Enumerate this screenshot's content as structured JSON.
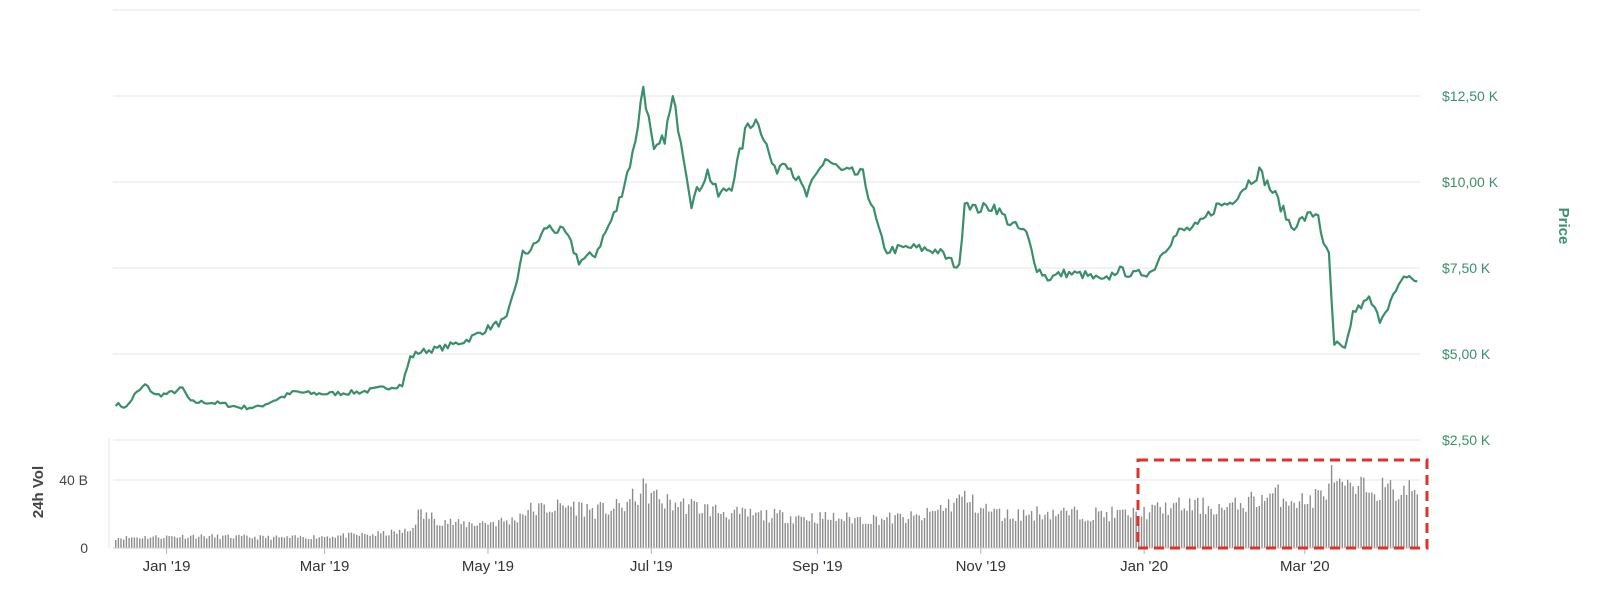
{
  "colors": {
    "price_line": "#3a8f6b",
    "price_axis_text": "#3a8f6b",
    "volume_bar": "#8c8c8c",
    "volume_axis_text": "#444444",
    "grid": "#e6e6e6",
    "axis_text": "#333333",
    "highlight_box": "#e0322a"
  },
  "chart_data": [
    {
      "type": "line",
      "ylabel": "Price",
      "ylim": [
        2.5,
        15
      ],
      "y_ticks": [
        2.5,
        5,
        7.5,
        10,
        12.5
      ],
      "y_tick_labels": [
        "$2,50 K",
        "$5,00 K",
        "$7,50 K",
        "$10,00 K",
        "$12,50 K"
      ],
      "y_axis_side": "right",
      "xlim": [
        "2018-12-12",
        "2020-04-13"
      ],
      "x_ticks": [
        "2019-01-01",
        "2019-03-01",
        "2019-05-01",
        "2019-07-01",
        "2019-09-01",
        "2019-11-01",
        "2020-01-01",
        "2020-03-01"
      ],
      "x_tick_labels": [
        "Jan '19",
        "Mar '19",
        "May '19",
        "Jul '19",
        "Sep '19",
        "Nov '19",
        "Jan '20",
        "Mar '20"
      ],
      "grid": true,
      "series": [
        {
          "x": [
            "2018-12-13",
            "2018-12-17",
            "2018-12-20",
            "2018-12-24",
            "2018-12-28",
            "2019-01-02",
            "2019-01-07",
            "2019-01-10",
            "2019-01-16",
            "2019-01-22",
            "2019-01-28",
            "2019-02-04",
            "2019-02-10",
            "2019-02-18",
            "2019-02-24",
            "2019-03-04",
            "2019-03-15",
            "2019-03-22",
            "2019-03-30",
            "2019-04-02",
            "2019-04-05",
            "2019-04-15",
            "2019-04-23",
            "2019-05-01",
            "2019-05-08",
            "2019-05-11",
            "2019-05-14",
            "2019-05-18",
            "2019-05-23",
            "2019-05-30",
            "2019-06-04",
            "2019-06-10",
            "2019-06-18",
            "2019-06-24",
            "2019-06-26",
            "2019-06-28",
            "2019-07-02",
            "2019-07-06",
            "2019-07-09",
            "2019-07-12",
            "2019-07-16",
            "2019-07-22",
            "2019-07-26",
            "2019-07-31",
            "2019-08-06",
            "2019-08-10",
            "2019-08-16",
            "2019-08-20",
            "2019-08-28",
            "2019-09-04",
            "2019-09-10",
            "2019-09-18",
            "2019-09-24",
            "2019-09-26",
            "2019-10-06",
            "2019-10-16",
            "2019-10-24",
            "2019-10-26",
            "2019-10-30",
            "2019-11-06",
            "2019-11-12",
            "2019-11-18",
            "2019-11-22",
            "2019-11-26",
            "2019-12-02",
            "2019-12-10",
            "2019-12-17",
            "2019-12-22",
            "2019-12-28",
            "2020-01-04",
            "2020-01-08",
            "2020-01-14",
            "2020-01-21",
            "2020-01-28",
            "2020-02-02",
            "2020-02-09",
            "2020-02-13",
            "2020-02-19",
            "2020-02-25",
            "2020-03-02",
            "2020-03-06",
            "2020-03-08",
            "2020-03-10",
            "2020-03-12",
            "2020-03-13",
            "2020-03-16",
            "2020-03-19",
            "2020-03-25",
            "2020-03-29",
            "2020-04-04",
            "2020-04-08",
            "2020-04-12"
          ],
          "values": [
            3.55,
            3.45,
            3.8,
            4.1,
            3.8,
            3.85,
            4.0,
            3.6,
            3.6,
            3.55,
            3.45,
            3.45,
            3.65,
            3.9,
            3.85,
            3.85,
            3.9,
            4.0,
            4.1,
            4.9,
            5.05,
            5.2,
            5.4,
            5.75,
            6.0,
            6.9,
            7.9,
            8.1,
            8.7,
            8.5,
            7.7,
            7.9,
            9.2,
            10.8,
            11.7,
            12.8,
            10.8,
            11.3,
            12.4,
            11.3,
            9.4,
            10.3,
            9.6,
            9.9,
            11.7,
            11.8,
            10.3,
            10.7,
            9.6,
            10.7,
            10.3,
            10.2,
            8.6,
            8.0,
            8.1,
            8.0,
            7.5,
            9.5,
            9.2,
            9.3,
            8.8,
            8.5,
            7.5,
            7.2,
            7.35,
            7.3,
            7.1,
            7.45,
            7.3,
            7.4,
            8.0,
            8.55,
            8.7,
            9.3,
            9.4,
            10.0,
            10.3,
            9.6,
            8.7,
            9.0,
            9.1,
            8.1,
            7.9,
            5.2,
            5.3,
            5.1,
            6.2,
            6.6,
            6.0,
            6.8,
            7.3,
            7.1
          ]
        }
      ]
    },
    {
      "type": "bar",
      "ylabel": "24h Vol",
      "ylim": [
        0,
        60
      ],
      "y_ticks": [
        0,
        40
      ],
      "y_tick_labels": [
        "0",
        "40 B"
      ],
      "y_axis_side": "left",
      "series": [
        {
          "x": [
            "2018-12-13",
            "2019-01-10",
            "2019-02-15",
            "2019-03-20",
            "2019-04-02",
            "2019-04-05",
            "2019-04-20",
            "2019-05-10",
            "2019-05-15",
            "2019-06-01",
            "2019-06-10",
            "2019-06-20",
            "2019-06-26",
            "2019-06-28",
            "2019-07-06",
            "2019-07-15",
            "2019-08-01",
            "2019-08-15",
            "2019-09-01",
            "2019-09-20",
            "2019-10-10",
            "2019-10-26",
            "2019-10-30",
            "2019-11-10",
            "2019-11-25",
            "2019-12-10",
            "2019-12-30",
            "2020-01-10",
            "2020-01-20",
            "2020-02-01",
            "2020-02-10",
            "2020-02-20",
            "2020-03-01",
            "2020-03-08",
            "2020-03-12",
            "2020-03-13",
            "2020-03-18",
            "2020-03-25",
            "2020-04-05",
            "2020-04-12"
          ],
          "values": [
            6,
            7,
            6,
            8,
            10,
            20,
            14,
            16,
            22,
            25,
            22,
            24,
            31,
            34,
            27,
            25,
            20,
            19,
            18,
            17,
            18,
            30,
            25,
            19,
            21,
            20,
            20,
            24,
            25,
            23,
            28,
            31,
            27,
            32,
            44,
            36,
            33,
            36,
            33,
            35
          ]
        }
      ]
    }
  ]
}
